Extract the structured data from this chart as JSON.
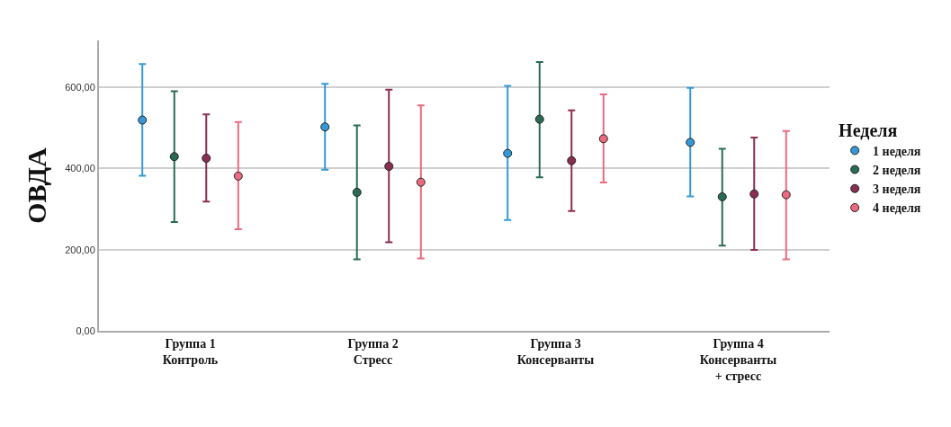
{
  "chart_data": {
    "type": "scatter",
    "ylabel": "ОВДА",
    "legend_title": "Неделя",
    "legend": "right",
    "grid": "y",
    "marker": "circle",
    "categories": [
      "Группа 1\nКонтроль",
      "Группа 2\nСтресс",
      "Группа 3\nКонсерванты",
      "Группа 4\nКонсерванты\n+ стресс"
    ],
    "ylim": [
      0,
      715
    ],
    "yticks": [
      {
        "value": 0,
        "label": "0,00"
      },
      {
        "value": 200,
        "label": "200,00"
      },
      {
        "value": 400,
        "label": "400,00"
      },
      {
        "value": 600,
        "label": "600,00"
      }
    ],
    "series": [
      {
        "name": "1 неделя",
        "color": "#3499d6",
        "values": [
          519,
          502,
          437,
          464
        ],
        "errors": [
          [
            382,
            657
          ],
          [
            397,
            608
          ],
          [
            273,
            603
          ],
          [
            331,
            598
          ]
        ]
      },
      {
        "name": "2 неделя",
        "color": "#2a6b58",
        "values": [
          429,
          341,
          521,
          330
        ],
        "errors": [
          [
            268,
            590
          ],
          [
            176,
            506
          ],
          [
            378,
            662
          ],
          [
            210,
            448
          ]
        ]
      },
      {
        "name": "3 неделя",
        "color": "#8c2d52",
        "values": [
          425,
          405,
          419,
          337
        ],
        "errors": [
          [
            318,
            533
          ],
          [
            218,
            594
          ],
          [
            295,
            543
          ],
          [
            199,
            476
          ]
        ]
      },
      {
        "name": "4 неделя",
        "color": "#ec6a80",
        "values": [
          381,
          366,
          473,
          335
        ],
        "errors": [
          [
            250,
            514
          ],
          [
            178,
            555
          ],
          [
            365,
            582
          ],
          [
            176,
            492
          ]
        ]
      }
    ]
  }
}
